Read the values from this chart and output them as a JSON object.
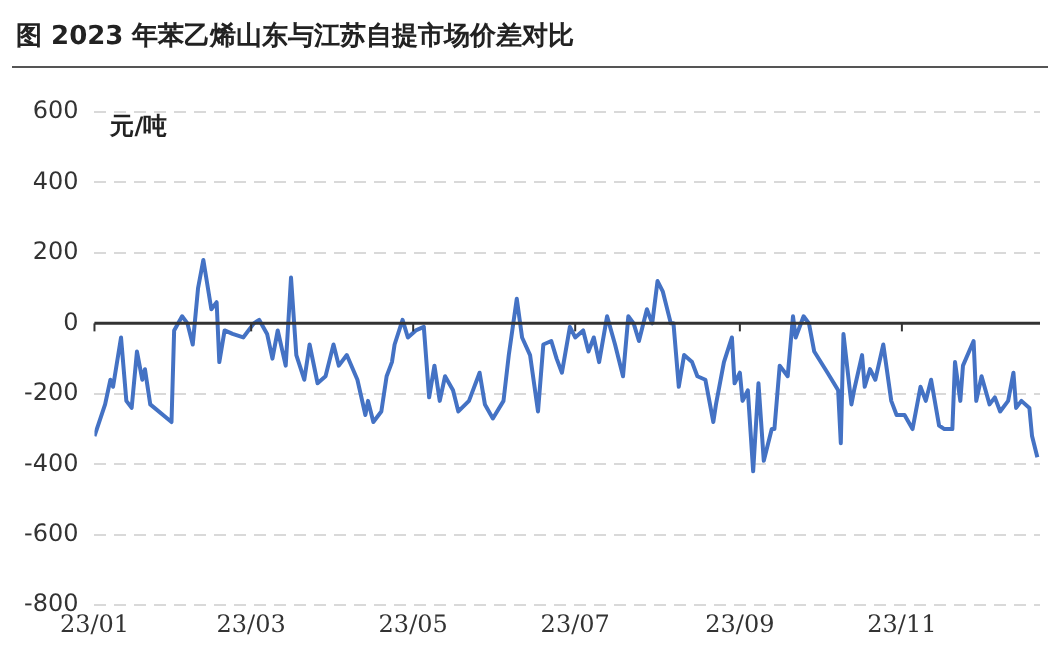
{
  "chart_data": {
    "type": "line",
    "title": "图 2023 年苯乙烯山东与江苏自提市场价差对比",
    "ylabel": "元/吨",
    "xlim": [
      "2023-01-01",
      "2023-12-23"
    ],
    "xticks": [
      {
        "value": "2023-01-01",
        "label": "23/01"
      },
      {
        "value": "2023-03-01",
        "label": "23/03"
      },
      {
        "value": "2023-05-01",
        "label": "23/05"
      },
      {
        "value": "2023-07-01",
        "label": "23/07"
      },
      {
        "value": "2023-09-01",
        "label": "23/09"
      },
      {
        "value": "2023-11-01",
        "label": "23/11"
      }
    ],
    "ylim": [
      -800,
      600
    ],
    "yticks": [
      -800,
      -600,
      -400,
      -200,
      0,
      200,
      400,
      600
    ],
    "grid": "y",
    "legend": false,
    "marker": "none",
    "line_style": "solid",
    "series": [
      {
        "color": "#4472c4",
        "x": [
          "2023-01-01",
          "2023-01-05",
          "2023-01-07",
          "2023-01-08",
          "2023-01-11",
          "2023-01-13",
          "2023-01-15",
          "2023-01-17",
          "2023-01-19",
          "2023-01-20",
          "2023-01-22",
          "2023-01-30",
          "2023-01-31",
          "2023-02-03",
          "2023-02-05",
          "2023-02-07",
          "2023-02-09",
          "2023-02-11",
          "2023-02-14",
          "2023-02-16",
          "2023-02-17",
          "2023-02-19",
          "2023-02-22",
          "2023-02-26",
          "2023-03-02",
          "2023-03-04",
          "2023-03-07",
          "2023-03-09",
          "2023-03-11",
          "2023-03-14",
          "2023-03-16",
          "2023-03-18",
          "2023-03-21",
          "2023-03-23",
          "2023-03-26",
          "2023-03-29",
          "2023-04-01",
          "2023-04-03",
          "2023-04-06",
          "2023-04-10",
          "2023-04-13",
          "2023-04-14",
          "2023-04-16",
          "2023-04-19",
          "2023-04-21",
          "2023-04-23",
          "2023-04-24",
          "2023-04-27",
          "2023-04-29",
          "2023-05-02",
          "2023-05-05",
          "2023-05-07",
          "2023-05-09",
          "2023-05-11",
          "2023-05-13",
          "2023-05-16",
          "2023-05-18",
          "2023-05-22",
          "2023-05-26",
          "2023-05-28",
          "2023-05-31",
          "2023-06-04",
          "2023-06-06",
          "2023-06-09",
          "2023-06-11",
          "2023-06-14",
          "2023-06-17",
          "2023-06-19",
          "2023-06-22",
          "2023-06-24",
          "2023-06-26",
          "2023-06-29",
          "2023-07-01",
          "2023-07-04",
          "2023-07-06",
          "2023-07-08",
          "2023-07-10",
          "2023-07-13",
          "2023-07-16",
          "2023-07-19",
          "2023-07-21",
          "2023-07-23",
          "2023-07-25",
          "2023-07-28",
          "2023-07-30",
          "2023-08-01",
          "2023-08-03",
          "2023-08-06",
          "2023-08-07",
          "2023-08-09",
          "2023-08-11",
          "2023-08-14",
          "2023-08-16",
          "2023-08-19",
          "2023-08-21",
          "2023-08-22",
          "2023-08-23",
          "2023-08-26",
          "2023-08-29",
          "2023-08-30",
          "2023-09-01",
          "2023-09-02",
          "2023-09-04",
          "2023-09-06",
          "2023-09-08",
          "2023-09-10",
          "2023-09-13",
          "2023-09-14",
          "2023-09-16",
          "2023-09-19",
          "2023-09-21",
          "2023-09-22",
          "2023-09-25",
          "2023-09-27",
          "2023-09-29",
          "2023-10-04",
          "2023-10-08",
          "2023-10-09",
          "2023-10-10",
          "2023-10-13",
          "2023-10-14",
          "2023-10-17",
          "2023-10-18",
          "2023-10-20",
          "2023-10-22",
          "2023-10-25",
          "2023-10-28",
          "2023-10-30",
          "2023-11-02",
          "2023-11-05",
          "2023-11-08",
          "2023-11-10",
          "2023-11-12",
          "2023-11-15",
          "2023-11-17",
          "2023-11-20",
          "2023-11-21",
          "2023-11-23",
          "2023-11-24",
          "2023-11-28",
          "2023-11-29",
          "2023-12-01",
          "2023-12-04",
          "2023-12-06",
          "2023-12-08",
          "2023-12-11",
          "2023-12-13",
          "2023-12-14",
          "2023-12-16",
          "2023-12-19",
          "2023-12-20",
          "2023-12-22"
        ],
        "values": [
          -320,
          -230,
          -160,
          -180,
          -40,
          -220,
          -240,
          -80,
          -160,
          -130,
          -230,
          -280,
          -20,
          20,
          0,
          -60,
          100,
          180,
          40,
          60,
          -110,
          -20,
          -30,
          -40,
          0,
          10,
          -30,
          -100,
          -20,
          -120,
          130,
          -90,
          -160,
          -60,
          -170,
          -150,
          -60,
          -120,
          -90,
          -160,
          -260,
          -220,
          -280,
          -250,
          -150,
          -110,
          -60,
          10,
          -40,
          -20,
          -10,
          -210,
          -120,
          -220,
          -150,
          -190,
          -250,
          -220,
          -140,
          -230,
          -270,
          -220,
          -90,
          70,
          -40,
          -90,
          -250,
          -60,
          -50,
          -100,
          -140,
          -10,
          -40,
          -20,
          -80,
          -40,
          -110,
          20,
          -60,
          -150,
          20,
          0,
          -50,
          40,
          0,
          120,
          90,
          0,
          0,
          -180,
          -90,
          -110,
          -150,
          -160,
          -240,
          -280,
          -230,
          -110,
          -40,
          -170,
          -140,
          -220,
          -190,
          -420,
          -170,
          -390,
          -300,
          -300,
          -120,
          -150,
          20,
          -40,
          20,
          0,
          -80,
          -140,
          -190,
          -340,
          -30,
          -230,
          -190,
          -90,
          -180,
          -130,
          -160,
          -60,
          -220,
          -260,
          -260,
          -300,
          -180,
          -220,
          -160,
          -290,
          -300,
          -300,
          -110,
          -220,
          -120,
          -50,
          -220,
          -150,
          -230,
          -210,
          -250,
          -220,
          -140,
          -240,
          -220,
          -240,
          -320,
          -380
        ]
      }
    ]
  }
}
